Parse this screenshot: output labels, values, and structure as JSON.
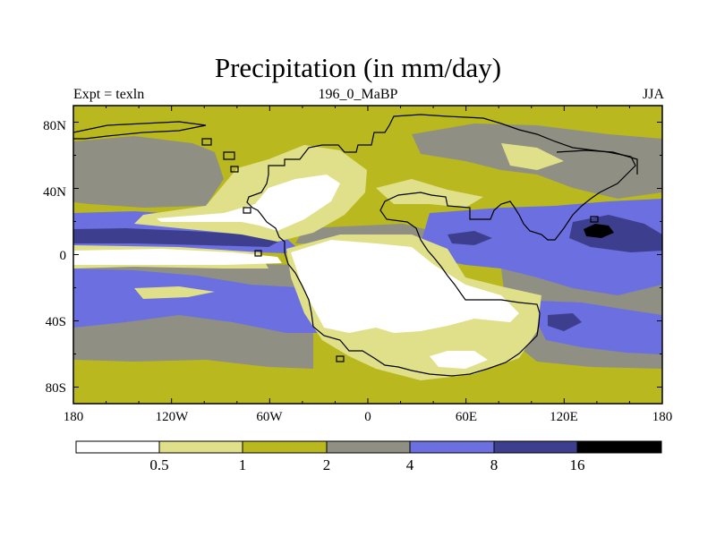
{
  "title": "Precipitation (in mm/day)",
  "subtitle_left": "Expt = texln",
  "subtitle_center": "196_0_MaBP",
  "subtitle_right": "JJA",
  "map": {
    "projection": "cylindrical-equidistant",
    "lon_range": [
      -180,
      180
    ],
    "lat_range": [
      -90,
      90
    ],
    "x_ticks": [
      "180",
      "120W",
      "60W",
      "0",
      "60E",
      "120E",
      "180"
    ],
    "x_tick_values": [
      -180,
      -120,
      -60,
      0,
      60,
      120,
      180
    ],
    "y_ticks": [
      "80N",
      "40N",
      "0",
      "40S",
      "80S"
    ],
    "y_tick_values": [
      80,
      40,
      0,
      -40,
      -80
    ]
  },
  "legend": {
    "labels": [
      "0.5",
      "1",
      "2",
      "4",
      "8",
      "16"
    ],
    "colors": [
      "#ffffff",
      "#e0e08a",
      "#b9b91f",
      "#8f8f84",
      "#6c6fe0",
      "#3d3f8e",
      "#000000"
    ]
  },
  "chart_data": {
    "type": "heatmap",
    "title": "Precipitation (in mm/day)",
    "variable": "precipitation",
    "units": "mm/day",
    "season": "JJA",
    "experiment": "texln",
    "age": "196_0_MaBP",
    "contour_levels": [
      0.5,
      1,
      2,
      4,
      8,
      16
    ],
    "xlim": [
      -180,
      180
    ],
    "ylim": [
      -90,
      90
    ]
  }
}
